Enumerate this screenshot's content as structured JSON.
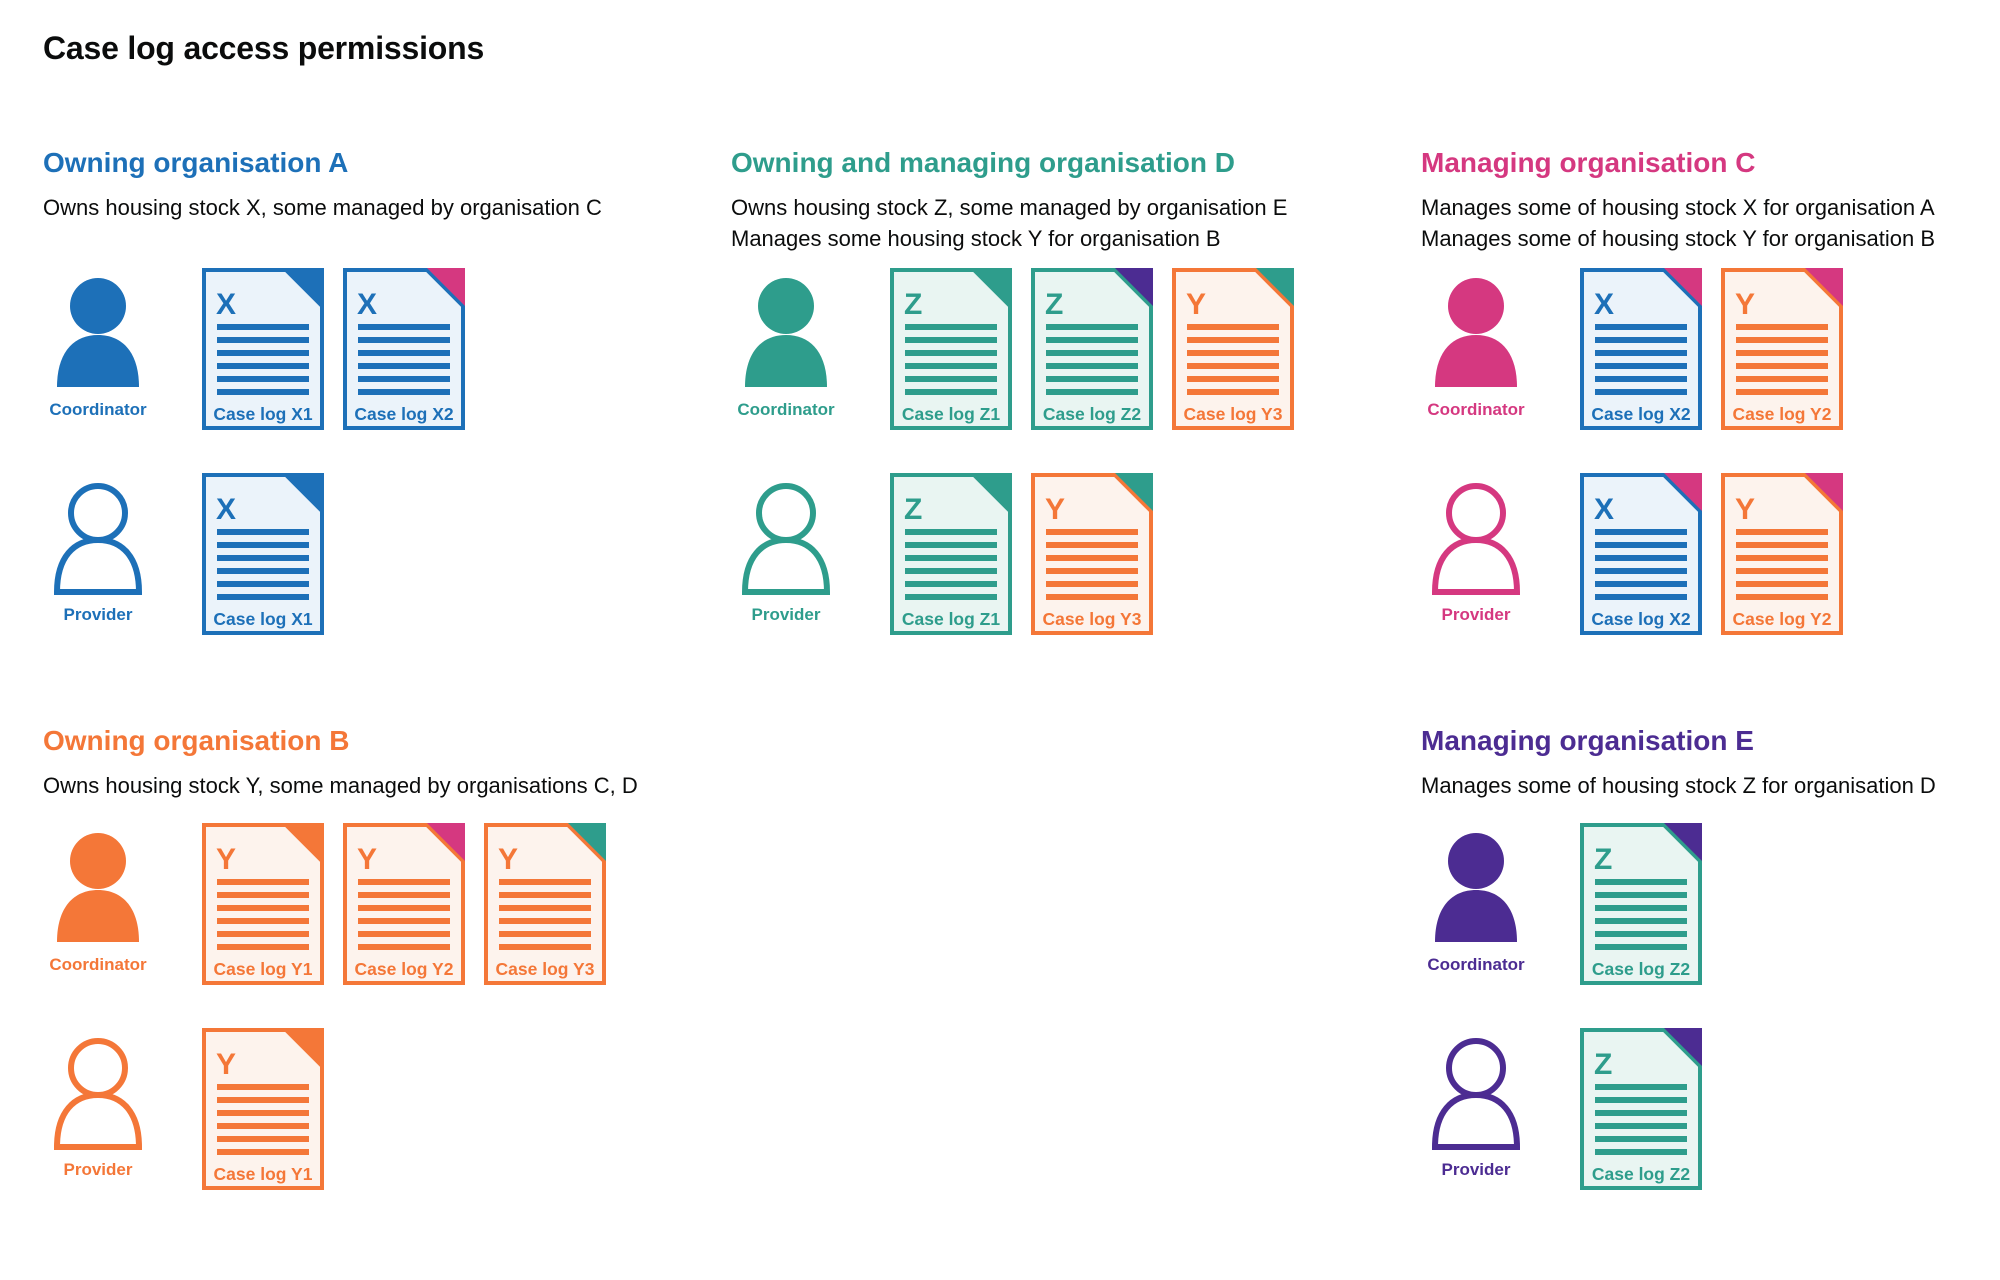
{
  "title": "Case log access permissions",
  "colors": {
    "blue": "#1d70b8",
    "teal": "#2e9d8c",
    "pink": "#d53880",
    "orange": "#f47738",
    "purple": "#4c2c92",
    "text": "#0b0c0c",
    "blue_tint": "#ebf3fa",
    "teal_tint": "#e9f5f2",
    "orange_tint": "#fdf3ed"
  },
  "roles": {
    "coordinator": "Coordinator",
    "provider": "Provider"
  },
  "icons": {
    "coordinator": "person-filled-icon",
    "provider": "person-outline-icon",
    "document": "case-log-document-icon"
  },
  "organisations": [
    {
      "id": "A",
      "name": "Owning organisation A",
      "color": "blue",
      "description": [
        "Owns housing stock X, some managed by organisation C"
      ],
      "rows": [
        {
          "role": "coordinator",
          "docs": [
            {
              "letter": "X",
              "label": "Case log X1",
              "color": "blue",
              "corner": "blue"
            },
            {
              "letter": "X",
              "label": "Case log X2",
              "color": "blue",
              "corner": "pink"
            }
          ]
        },
        {
          "role": "provider",
          "docs": [
            {
              "letter": "X",
              "label": "Case log X1",
              "color": "blue",
              "corner": "blue"
            }
          ]
        }
      ]
    },
    {
      "id": "D",
      "name": "Owning and managing organisation D",
      "color": "teal",
      "description": [
        "Owns housing stock Z, some managed by organisation E",
        "Manages some housing stock Y for organisation B"
      ],
      "rows": [
        {
          "role": "coordinator",
          "docs": [
            {
              "letter": "Z",
              "label": "Case log Z1",
              "color": "teal",
              "corner": "teal"
            },
            {
              "letter": "Z",
              "label": "Case log Z2",
              "color": "teal",
              "corner": "purple"
            },
            {
              "letter": "Y",
              "label": "Case log Y3",
              "color": "orange",
              "corner": "teal"
            }
          ]
        },
        {
          "role": "provider",
          "docs": [
            {
              "letter": "Z",
              "label": "Case log Z1",
              "color": "teal",
              "corner": "teal"
            },
            {
              "letter": "Y",
              "label": "Case log Y3",
              "color": "orange",
              "corner": "teal"
            }
          ]
        }
      ]
    },
    {
      "id": "C",
      "name": "Managing organisation C",
      "color": "pink",
      "description": [
        "Manages some of housing stock X for organisation A",
        "Manages some of housing stock Y for organisation B"
      ],
      "rows": [
        {
          "role": "coordinator",
          "docs": [
            {
              "letter": "X",
              "label": "Case log X2",
              "color": "blue",
              "corner": "pink"
            },
            {
              "letter": "Y",
              "label": "Case log Y2",
              "color": "orange",
              "corner": "pink"
            }
          ]
        },
        {
          "role": "provider",
          "docs": [
            {
              "letter": "X",
              "label": "Case log X2",
              "color": "blue",
              "corner": "pink"
            },
            {
              "letter": "Y",
              "label": "Case log Y2",
              "color": "orange",
              "corner": "pink"
            }
          ]
        }
      ]
    },
    {
      "id": "B",
      "name": "Owning organisation B",
      "color": "orange",
      "description": [
        "Owns housing stock Y, some managed by organisations C, D"
      ],
      "rows": [
        {
          "role": "coordinator",
          "docs": [
            {
              "letter": "Y",
              "label": "Case log Y1",
              "color": "orange",
              "corner": "orange"
            },
            {
              "letter": "Y",
              "label": "Case log Y2",
              "color": "orange",
              "corner": "pink"
            },
            {
              "letter": "Y",
              "label": "Case log Y3",
              "color": "orange",
              "corner": "teal"
            }
          ]
        },
        {
          "role": "provider",
          "docs": [
            {
              "letter": "Y",
              "label": "Case log Y1",
              "color": "orange",
              "corner": "orange"
            }
          ]
        }
      ]
    },
    {
      "id": "E",
      "name": "Managing organisation E",
      "color": "purple",
      "description": [
        "Manages some of housing stock Z for organisation D"
      ],
      "rows": [
        {
          "role": "coordinator",
          "docs": [
            {
              "letter": "Z",
              "label": "Case log Z2",
              "color": "teal",
              "corner": "purple"
            }
          ]
        },
        {
          "role": "provider",
          "docs": [
            {
              "letter": "Z",
              "label": "Case log Z2",
              "color": "teal",
              "corner": "purple"
            }
          ]
        }
      ]
    }
  ]
}
